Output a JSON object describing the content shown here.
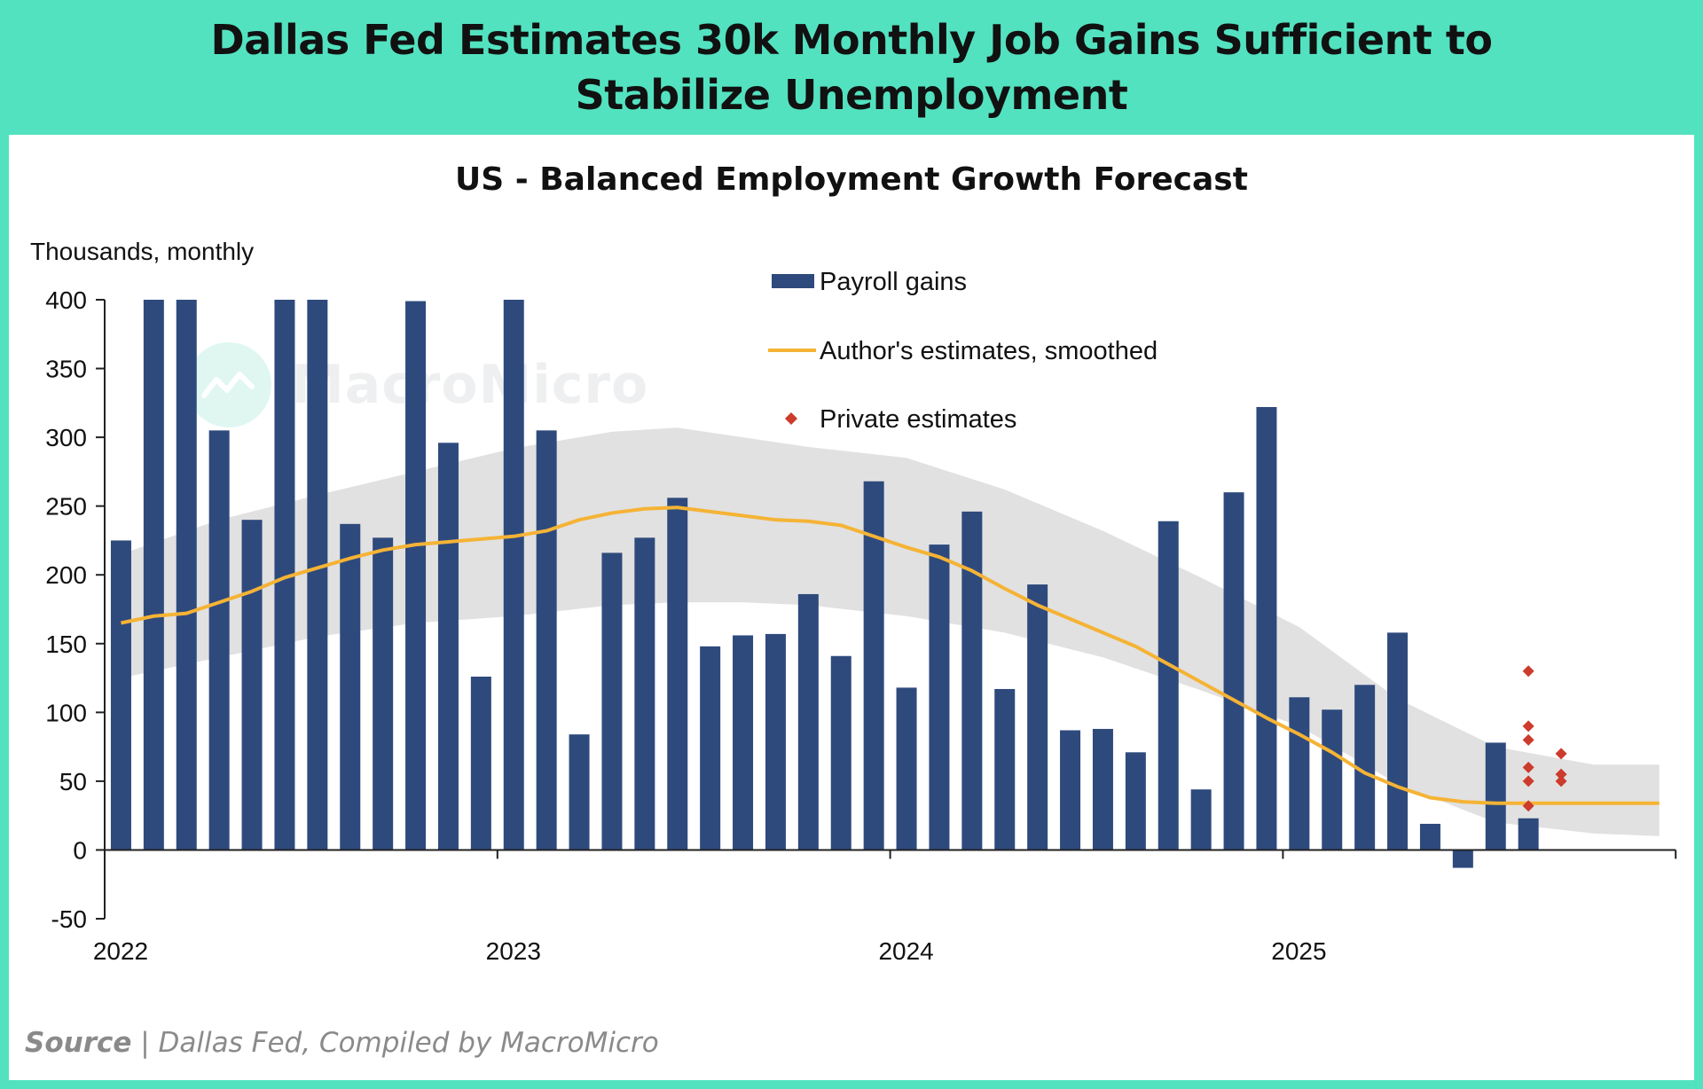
{
  "header": {
    "title": "Dallas Fed Estimates 30k Monthly Job Gains Sufficient to Stabilize Unemployment"
  },
  "footer": {
    "source_label": "Source",
    "source_separator": " | ",
    "source_text": "Dallas Fed, Compiled by MacroMicro"
  },
  "watermark": {
    "text": "MacroMicro"
  },
  "colors": {
    "banner": "#53e2c0",
    "bar": "#2e4a7d",
    "line": "#f5b335",
    "band": "#dcdcdc",
    "dots": "#cc3b2b"
  },
  "chart_data": {
    "type": "bar",
    "title": "US - Balanced Employment Growth Forecast",
    "ylabel": "Thousands,  monthly",
    "xlabel": "",
    "ylim": [
      -50,
      400
    ],
    "yticks": [
      400,
      350,
      300,
      250,
      200,
      150,
      100,
      50,
      0,
      -50
    ],
    "xticks": [
      {
        "label": "2022",
        "month": 0
      },
      {
        "label": "2023",
        "month": 12
      },
      {
        "label": "2024",
        "month": 24
      },
      {
        "label": "2025",
        "month": 36
      }
    ],
    "grid": false,
    "legend_position": "top-center",
    "series": [
      {
        "name": "Payroll gains",
        "type": "bar",
        "months": [
          0,
          1,
          2,
          3,
          4,
          5,
          6,
          7,
          8,
          9,
          10,
          11,
          12,
          13,
          14,
          15,
          16,
          17,
          18,
          19,
          20,
          21,
          22,
          23,
          24,
          25,
          26,
          27,
          28,
          29,
          30,
          31,
          32,
          33,
          34,
          35,
          36,
          37,
          38,
          39,
          40,
          41,
          42,
          43,
          44
        ],
        "values": [
          225,
          400,
          400,
          305,
          240,
          400,
          400,
          237,
          227,
          399,
          296,
          126,
          400,
          305,
          84,
          216,
          227,
          256,
          148,
          156,
          157,
          186,
          141,
          268,
          118,
          222,
          246,
          117,
          193,
          87,
          88,
          71,
          239,
          44,
          260,
          322,
          111,
          102,
          120,
          158,
          19,
          -13,
          78,
          23,
          null
        ]
      },
      {
        "name": "Author's estimates, smoothed",
        "type": "line",
        "months": [
          0,
          1,
          2,
          3,
          4,
          5,
          6,
          7,
          8,
          9,
          10,
          11,
          12,
          13,
          14,
          15,
          16,
          17,
          18,
          19,
          20,
          21,
          22,
          23,
          24,
          25,
          26,
          27,
          28,
          29,
          30,
          31,
          32,
          33,
          34,
          35,
          36,
          37,
          38,
          39,
          40,
          41,
          42,
          43,
          44,
          45,
          46,
          47
        ],
        "values": [
          165,
          170,
          172,
          180,
          188,
          198,
          205,
          212,
          218,
          222,
          224,
          226,
          228,
          232,
          240,
          245,
          248,
          249,
          246,
          243,
          240,
          239,
          236,
          228,
          220,
          213,
          203,
          190,
          178,
          168,
          158,
          148,
          135,
          122,
          109,
          96,
          84,
          71,
          56,
          46,
          38,
          35,
          34,
          34,
          34,
          34,
          34,
          34
        ]
      },
      {
        "name": "Private estimates",
        "type": "scatter",
        "points": [
          {
            "x": 43,
            "y": 130
          },
          {
            "x": 43,
            "y": 90
          },
          {
            "x": 43,
            "y": 80
          },
          {
            "x": 43,
            "y": 60
          },
          {
            "x": 43,
            "y": 50
          },
          {
            "x": 43,
            "y": 32
          },
          {
            "x": 44,
            "y": 70
          },
          {
            "x": 44,
            "y": 55
          },
          {
            "x": 44,
            "y": 50
          }
        ]
      }
    ],
    "uncertainty_band": {
      "months": [
        0,
        3,
        6,
        9,
        12,
        15,
        17,
        19,
        21,
        24,
        27,
        30,
        33,
        36,
        39,
        42,
        45,
        47
      ],
      "upper": [
        215,
        240,
        258,
        275,
        292,
        304,
        307,
        300,
        293,
        285,
        262,
        232,
        198,
        162,
        110,
        75,
        62,
        62
      ],
      "lower": [
        125,
        140,
        155,
        165,
        170,
        178,
        180,
        180,
        178,
        170,
        158,
        140,
        116,
        90,
        48,
        20,
        12,
        10
      ]
    }
  }
}
